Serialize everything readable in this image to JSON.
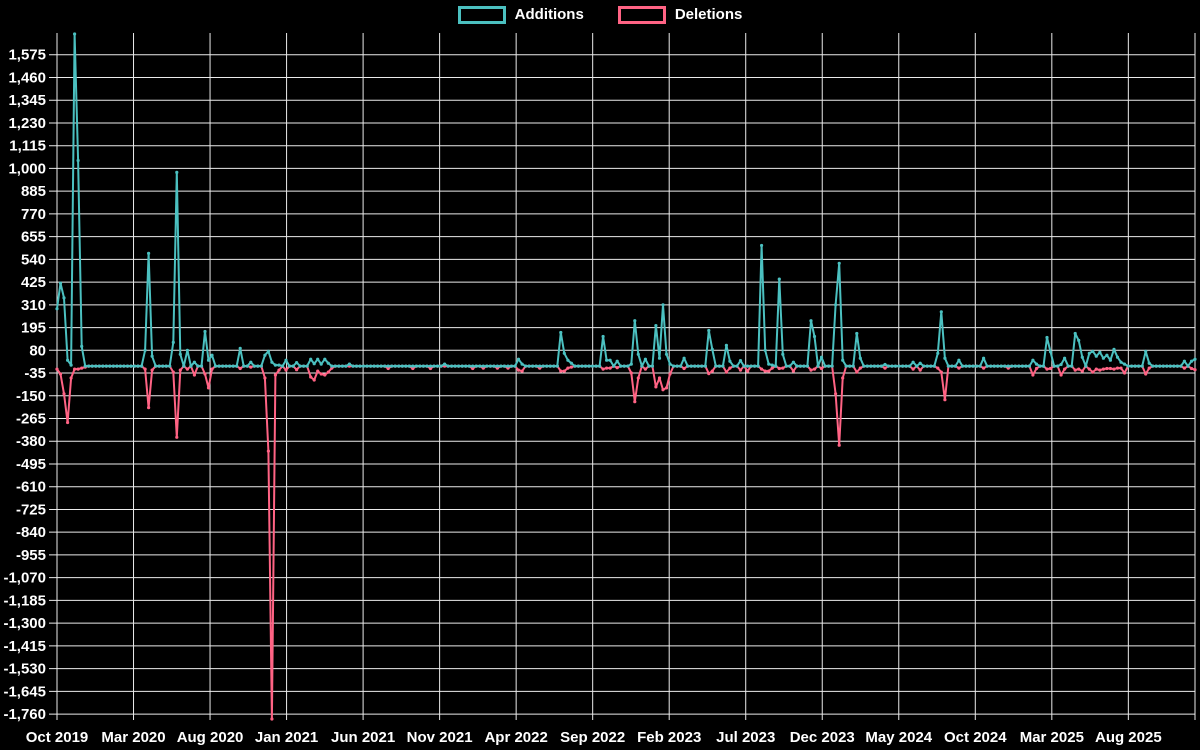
{
  "legend": {
    "items": [
      {
        "label": "Additions",
        "color": "#4bc0c0"
      },
      {
        "label": "Deletions",
        "color": "#ff6384"
      }
    ]
  },
  "chart_data": {
    "type": "line",
    "title": "",
    "xlabel": "",
    "ylabel": "",
    "background_color": "#000000",
    "grid_color": "#ffffff",
    "text_color": "#ffffff",
    "legend_position": "top-center",
    "grid": true,
    "x_tick_labels": [
      "Oct 2019",
      "Mar 2020",
      "Aug 2020",
      "Jan 2021",
      "Jun 2021",
      "Nov 2021",
      "Apr 2022",
      "Sep 2022",
      "Feb 2023",
      "Jul 2023",
      "Dec 2023",
      "May 2024",
      "Oct 2024",
      "Mar 2025",
      "Aug 2025"
    ],
    "x_tick_interval_months": 5,
    "x_unit": "week",
    "weeks_total": 324,
    "weeks_per_x_tick": 21.72,
    "y_tick_values": [
      1575,
      1460,
      1345,
      1230,
      1115,
      1000,
      885,
      770,
      655,
      540,
      425,
      310,
      195,
      80,
      -35,
      -150,
      -265,
      -380,
      -495,
      -610,
      -725,
      -840,
      -955,
      -1070,
      -1185,
      -1300,
      -1415,
      -1530,
      -1645,
      -1760
    ],
    "y_tick_labels": [
      "1,575",
      "1,460",
      "1,345",
      "1,230",
      "1,115",
      "1,000",
      "885",
      "770",
      "655",
      "540",
      "425",
      "310",
      "195",
      "80",
      "-35",
      "-150",
      "-265",
      "-380",
      "-495",
      "-610",
      "-725",
      "-840",
      "-955",
      "-1,070",
      "-1,185",
      "-1,300",
      "-1,415",
      "-1,530",
      "-1,645",
      "-1,760"
    ],
    "y_tick_step": 115,
    "ylim": [
      -1790,
      1685
    ],
    "series": [
      {
        "name": "Additions",
        "color": "#4bc0c0"
      },
      {
        "name": "Deletions",
        "color": "#ff6384"
      }
    ],
    "default_week_value": [
      0,
      0
    ],
    "events_format": [
      "week_index",
      "additions",
      "deletions"
    ],
    "events": [
      [
        0,
        290,
        -15
      ],
      [
        1,
        420,
        -40
      ],
      [
        2,
        345,
        -140
      ],
      [
        3,
        30,
        -285
      ],
      [
        4,
        5,
        -60
      ],
      [
        5,
        1680,
        -15
      ],
      [
        6,
        1040,
        -15
      ],
      [
        7,
        100,
        -10
      ],
      [
        8,
        0,
        -5
      ],
      [
        25,
        80,
        -15
      ],
      [
        26,
        570,
        -210
      ],
      [
        27,
        50,
        -20
      ],
      [
        33,
        120,
        -30
      ],
      [
        34,
        980,
        -360
      ],
      [
        35,
        60,
        -20
      ],
      [
        37,
        80,
        -15
      ],
      [
        39,
        20,
        -45
      ],
      [
        42,
        175,
        -40
      ],
      [
        43,
        30,
        -110
      ],
      [
        44,
        55,
        -15
      ],
      [
        52,
        90,
        -12
      ],
      [
        55,
        20,
        -5
      ],
      [
        59,
        55,
        -60
      ],
      [
        60,
        75,
        -430
      ],
      [
        61,
        20,
        -1785
      ],
      [
        62,
        5,
        -45
      ],
      [
        63,
        5,
        -20
      ],
      [
        65,
        30,
        -20
      ],
      [
        68,
        18,
        -18
      ],
      [
        72,
        35,
        -55
      ],
      [
        73,
        12,
        -70
      ],
      [
        74,
        35,
        -25
      ],
      [
        75,
        10,
        -40
      ],
      [
        76,
        35,
        -45
      ],
      [
        77,
        15,
        -30
      ],
      [
        78,
        0,
        -10
      ],
      [
        83,
        10,
        0
      ],
      [
        94,
        0,
        -12
      ],
      [
        101,
        0,
        -12
      ],
      [
        106,
        0,
        -12
      ],
      [
        110,
        10,
        0
      ],
      [
        118,
        0,
        -12
      ],
      [
        121,
        0,
        -10
      ],
      [
        125,
        0,
        -10
      ],
      [
        128,
        0,
        -10
      ],
      [
        131,
        35,
        -20
      ],
      [
        132,
        10,
        -25
      ],
      [
        137,
        0,
        -10
      ],
      [
        143,
        170,
        -25
      ],
      [
        144,
        65,
        -25
      ],
      [
        145,
        30,
        -10
      ],
      [
        146,
        15,
        -5
      ],
      [
        155,
        150,
        -15
      ],
      [
        156,
        30,
        -10
      ],
      [
        157,
        30,
        -10
      ],
      [
        159,
        25,
        -8
      ],
      [
        163,
        10,
        -35
      ],
      [
        164,
        230,
        -180
      ],
      [
        165,
        60,
        -60
      ],
      [
        167,
        35,
        -15
      ],
      [
        170,
        205,
        -105
      ],
      [
        171,
        40,
        -60
      ],
      [
        172,
        310,
        -120
      ],
      [
        173,
        60,
        -110
      ],
      [
        174,
        10,
        -40
      ],
      [
        178,
        40,
        -12
      ],
      [
        185,
        180,
        -38
      ],
      [
        186,
        85,
        -25
      ],
      [
        190,
        105,
        -30
      ],
      [
        191,
        25,
        -10
      ],
      [
        194,
        28,
        -20
      ],
      [
        196,
        0,
        -25
      ],
      [
        200,
        610,
        -15
      ],
      [
        201,
        80,
        -25
      ],
      [
        202,
        10,
        -25
      ],
      [
        203,
        5,
        -10
      ],
      [
        205,
        440,
        -12
      ],
      [
        206,
        60,
        -10
      ],
      [
        209,
        20,
        -25
      ],
      [
        214,
        230,
        -20
      ],
      [
        215,
        150,
        -15
      ],
      [
        217,
        45,
        -12
      ],
      [
        221,
        310,
        -140
      ],
      [
        222,
        520,
        -400
      ],
      [
        223,
        30,
        -60
      ],
      [
        227,
        165,
        -30
      ],
      [
        228,
        40,
        -10
      ],
      [
        235,
        8,
        -10
      ],
      [
        243,
        20,
        -15
      ],
      [
        245,
        15,
        -20
      ],
      [
        250,
        65,
        -10
      ],
      [
        251,
        275,
        -30
      ],
      [
        252,
        40,
        -170
      ],
      [
        256,
        30,
        -10
      ],
      [
        263,
        40,
        -10
      ],
      [
        270,
        0,
        -10
      ],
      [
        277,
        30,
        -45
      ],
      [
        278,
        10,
        -12
      ],
      [
        281,
        145,
        -15
      ],
      [
        282,
        73,
        -12
      ],
      [
        285,
        8,
        -45
      ],
      [
        286,
        40,
        -15
      ],
      [
        289,
        165,
        -20
      ],
      [
        290,
        130,
        -15
      ],
      [
        291,
        45,
        -25
      ],
      [
        293,
        65,
        -15
      ],
      [
        294,
        75,
        -30
      ],
      [
        295,
        50,
        -15
      ],
      [
        296,
        70,
        -20
      ],
      [
        297,
        40,
        -15
      ],
      [
        298,
        55,
        -12
      ],
      [
        299,
        30,
        -12
      ],
      [
        300,
        85,
        -15
      ],
      [
        301,
        45,
        -10
      ],
      [
        302,
        20,
        -10
      ],
      [
        303,
        10,
        -35
      ],
      [
        309,
        75,
        -40
      ],
      [
        310,
        15,
        -10
      ],
      [
        320,
        25,
        -10
      ],
      [
        322,
        25,
        -12
      ],
      [
        323,
        35,
        -18
      ]
    ]
  }
}
